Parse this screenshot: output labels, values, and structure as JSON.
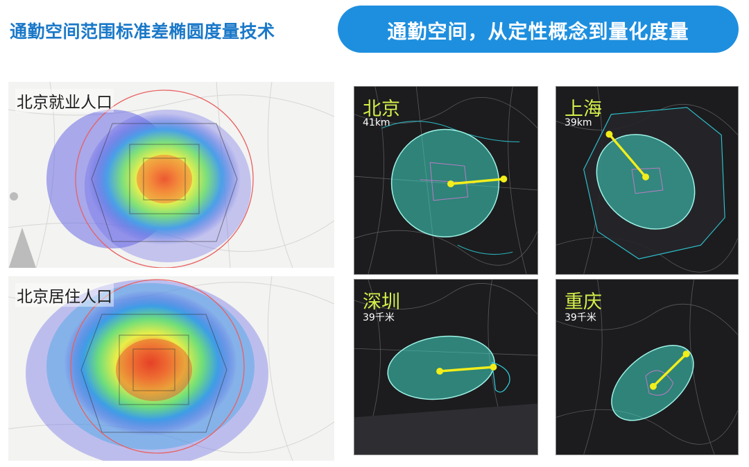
{
  "header": {
    "title": "通勤空间范围标准差椭圆度量技术",
    "banner": "通勤空间，从定性概念到量化度量"
  },
  "heatmaps": [
    {
      "label": "北京就业人口"
    },
    {
      "label": "北京居住人口"
    }
  ],
  "cities": [
    {
      "name": "北京",
      "distance": "41km"
    },
    {
      "name": "上海",
      "distance": "39km"
    },
    {
      "name": "深圳",
      "distance": "39千米"
    },
    {
      "name": "重庆",
      "distance": "39千米"
    }
  ],
  "colors": {
    "title_blue": "#1a78c8",
    "banner_blue": "#1e8fdf",
    "city_label": "#d5ef4a",
    "ellipse_fill": "#3fd9c4",
    "axis_line": "#f2ee1a"
  }
}
